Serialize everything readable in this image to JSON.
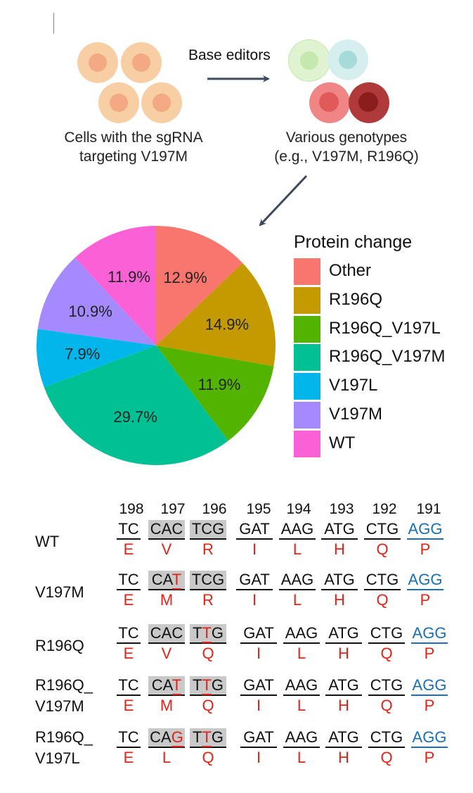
{
  "schematic": {
    "left_caption_line1": "Cells with the sgRNA",
    "left_caption_line2": "targeting V197M",
    "arrow_label": "Base editors",
    "right_caption_line1": "Various genotypes",
    "right_caption_line2": "(e.g., V197M, R196Q)",
    "colors": {
      "parent_cell_outer": "#f8cfa4",
      "parent_cell_inner": "#f3a982",
      "green_cell_outer": "#dff3d0",
      "green_cell_inner": "#c4e8ad",
      "teal_cell_outer": "#d6eeee",
      "teal_cell_inner": "#a7dbd9",
      "pink_cell_outer": "#ef8585",
      "pink_cell_inner": "#e15a5a",
      "dark_cell_outer": "#b03a3a",
      "dark_cell_inner": "#8c1d1d",
      "arrow": "#3d4a5c"
    }
  },
  "chart_data": {
    "type": "pie",
    "legend_title": "Protein change",
    "legend_placement": "right",
    "start_angle_deg": 0,
    "direction": "clockwise",
    "slices": [
      {
        "name": "Other",
        "value": 12.9,
        "label": "12.9%",
        "color": "#f8766d"
      },
      {
        "name": "R196Q",
        "value": 14.9,
        "label": "14.9%",
        "color": "#c49a00"
      },
      {
        "name": "R196Q_V197L",
        "value": 11.9,
        "label": "11.9%",
        "color": "#53b400"
      },
      {
        "name": "R196Q_V197M",
        "value": 29.7,
        "label": "29.7%",
        "color": "#00c094"
      },
      {
        "name": "V197L",
        "value": 7.9,
        "label": "7.9%",
        "color": "#00b6eb"
      },
      {
        "name": "V197M",
        "value": 10.9,
        "label": "10.9%",
        "color": "#a58aff"
      },
      {
        "name": "WT",
        "value": 11.9,
        "label": "11.9%",
        "color": "#fb61d7"
      }
    ]
  },
  "sequence_panel": {
    "positions": [
      "198",
      "197",
      "196",
      "195",
      "194",
      "193",
      "192",
      "191"
    ],
    "rows": [
      {
        "label_line1": "WT",
        "label_line2": "",
        "codons": [
          {
            "pre": "TC",
            "mut": "",
            "post": ""
          },
          {
            "pre": "CAC",
            "mut": "",
            "post": ""
          },
          {
            "pre": "TCG",
            "mut": "",
            "post": ""
          },
          {
            "pre": "GAT",
            "mut": "",
            "post": ""
          },
          {
            "pre": "AAG",
            "mut": "",
            "post": ""
          },
          {
            "pre": "ATG",
            "mut": "",
            "post": ""
          },
          {
            "pre": "CTG",
            "mut": "",
            "post": ""
          },
          {
            "pre": "AGG",
            "mut": "",
            "post": ""
          }
        ],
        "aas": [
          "E",
          "V",
          "R",
          "I",
          "L",
          "H",
          "Q",
          "P"
        ]
      },
      {
        "label_line1": "V197M",
        "label_line2": "",
        "codons": [
          {
            "pre": "TC",
            "mut": "",
            "post": ""
          },
          {
            "pre": "CA",
            "mut": "T",
            "post": ""
          },
          {
            "pre": "TCG",
            "mut": "",
            "post": ""
          },
          {
            "pre": "GAT",
            "mut": "",
            "post": ""
          },
          {
            "pre": "AAG",
            "mut": "",
            "post": ""
          },
          {
            "pre": "ATG",
            "mut": "",
            "post": ""
          },
          {
            "pre": "CTG",
            "mut": "",
            "post": ""
          },
          {
            "pre": "AGG",
            "mut": "",
            "post": ""
          }
        ],
        "aas": [
          "E",
          "M",
          "R",
          "I",
          "L",
          "H",
          "Q",
          "P"
        ]
      },
      {
        "label_line1": "R196Q",
        "label_line2": "",
        "codons": [
          {
            "pre": "TC",
            "mut": "",
            "post": ""
          },
          {
            "pre": "CAC",
            "mut": "",
            "post": ""
          },
          {
            "pre": "T",
            "mut": "T",
            "post": "G"
          },
          {
            "pre": "GAT",
            "mut": "",
            "post": ""
          },
          {
            "pre": "AAG",
            "mut": "",
            "post": ""
          },
          {
            "pre": "ATG",
            "mut": "",
            "post": ""
          },
          {
            "pre": "CTG",
            "mut": "",
            "post": ""
          },
          {
            "pre": "AGG",
            "mut": "",
            "post": ""
          }
        ],
        "aas": [
          "E",
          "V",
          "Q",
          "I",
          "L",
          "H",
          "Q",
          "P"
        ]
      },
      {
        "label_line1": "R196Q_",
        "label_line2": "V197M",
        "codons": [
          {
            "pre": "TC",
            "mut": "",
            "post": ""
          },
          {
            "pre": "CA",
            "mut": "T",
            "post": ""
          },
          {
            "pre": "T",
            "mut": "T",
            "post": "G"
          },
          {
            "pre": "GAT",
            "mut": "",
            "post": ""
          },
          {
            "pre": "AAG",
            "mut": "",
            "post": ""
          },
          {
            "pre": "ATG",
            "mut": "",
            "post": ""
          },
          {
            "pre": "CTG",
            "mut": "",
            "post": ""
          },
          {
            "pre": "AGG",
            "mut": "",
            "post": ""
          }
        ],
        "aas": [
          "E",
          "M",
          "Q",
          "I",
          "L",
          "H",
          "Q",
          "P"
        ]
      },
      {
        "label_line1": "R196Q_",
        "label_line2": "V197L",
        "codons": [
          {
            "pre": "TC",
            "mut": "",
            "post": ""
          },
          {
            "pre": "CA",
            "mut": "G",
            "post": ""
          },
          {
            "pre": "T",
            "mut": "T",
            "post": "G"
          },
          {
            "pre": "GAT",
            "mut": "",
            "post": ""
          },
          {
            "pre": "AAG",
            "mut": "",
            "post": ""
          },
          {
            "pre": "ATG",
            "mut": "",
            "post": ""
          },
          {
            "pre": "CTG",
            "mut": "",
            "post": ""
          },
          {
            "pre": "AGG",
            "mut": "",
            "post": ""
          }
        ],
        "aas": [
          "E",
          "L",
          "Q",
          "I",
          "L",
          "H",
          "Q",
          "P"
        ]
      }
    ],
    "colors": {
      "mutation": "#e2231a",
      "pam": "#1a6fb5",
      "shade": "#c9c9c9"
    }
  }
}
